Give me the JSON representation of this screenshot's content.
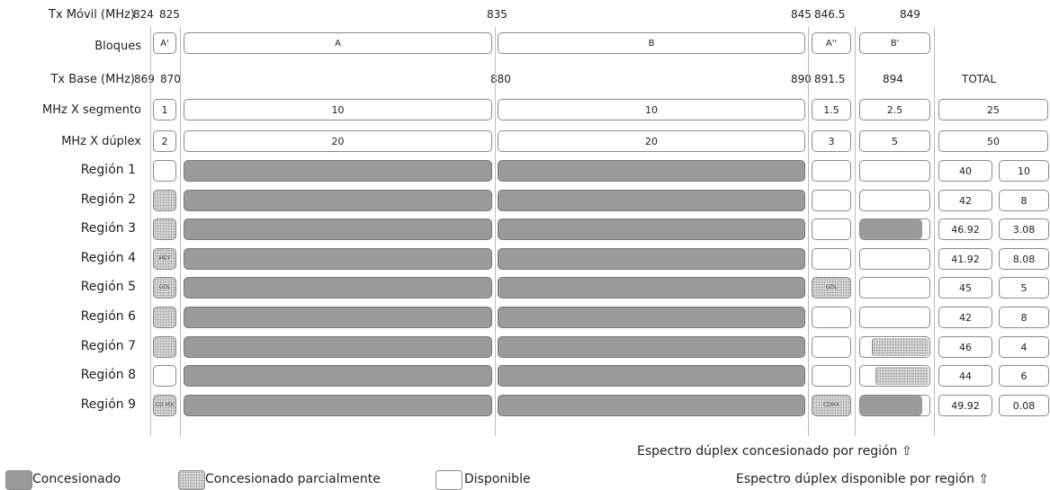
{
  "header": {
    "tx_movil_label": "Tx Móvil (MHz)",
    "tx_movil_ticks": [
      "824",
      "825",
      "835",
      "845",
      "846.5",
      "849"
    ],
    "bloques_label": "Bloques",
    "blocks": [
      "A'",
      "A",
      "B",
      "A''",
      "B'"
    ],
    "tx_base_label": "Tx Base (MHz)",
    "tx_base_ticks": [
      "869",
      "870",
      "880",
      "890",
      "891.5",
      "894"
    ],
    "total_label": "TOTAL"
  },
  "segment_row": {
    "label": "MHz X segmento",
    "values": [
      "1",
      "10",
      "10",
      "1.5",
      "2.5"
    ],
    "total": "25"
  },
  "duplex_row": {
    "label": "MHz X dúplex",
    "values": [
      "2",
      "20",
      "20",
      "3",
      "5"
    ],
    "total": "50"
  },
  "regions": [
    {
      "name": "Región 1",
      "a1": "available",
      "a1_text": "",
      "a2": "available",
      "a2_text": "",
      "b1": "available",
      "b1_fill": 0,
      "conc": "40",
      "disp": "10"
    },
    {
      "name": "Región 2",
      "a1": "partial",
      "a1_text": "",
      "a2": "available",
      "a2_text": "",
      "b1": "available",
      "b1_fill": 0,
      "conc": "42",
      "disp": "8"
    },
    {
      "name": "Región 3",
      "a1": "partial",
      "a1_text": "",
      "a2": "available",
      "a2_text": "",
      "b1": "full",
      "b1_fill": 0.9,
      "conc": "46.92",
      "disp": "3.08"
    },
    {
      "name": "Región 4",
      "a1": "partial",
      "a1_text": "MEY",
      "a2": "available",
      "a2_text": "",
      "b1": "available",
      "b1_fill": 0,
      "conc": "41.92",
      "disp": "8.08"
    },
    {
      "name": "Región 5",
      "a1": "partial",
      "a1_text": "GDL",
      "a2": "partial",
      "a2_text": "GDL",
      "b1": "available",
      "b1_fill": 0,
      "conc": "45",
      "disp": "5"
    },
    {
      "name": "Región 6",
      "a1": "partial",
      "a1_text": "",
      "a2": "available",
      "a2_text": "",
      "b1": "available",
      "b1_fill": 0,
      "conc": "42",
      "disp": "8"
    },
    {
      "name": "Región 7",
      "a1": "partial",
      "a1_text": "",
      "a2": "available",
      "a2_text": "",
      "b1": "partial_right",
      "b1_fill": 0.8,
      "conc": "46",
      "disp": "4"
    },
    {
      "name": "Región 8",
      "a1": "available",
      "a1_text": "",
      "a2": "available",
      "a2_text": "",
      "b1": "partial_right",
      "b1_fill": 0.75,
      "conc": "44",
      "disp": "6"
    },
    {
      "name": "Región 9",
      "a1": "partial",
      "a1_text": "CD MX",
      "a2": "partial",
      "a2_text": "CDMX",
      "b1": "full",
      "b1_fill": 0.9,
      "conc": "49.92",
      "disp": "0.08"
    }
  ],
  "footer": {
    "concesionado_note": "Espectro dúplex concesionado por región ⇧",
    "disponible_note": "Espectro dúplex disponible por región ⇧"
  },
  "legend": [
    {
      "key": "full",
      "label": "Concesionado"
    },
    {
      "key": "partial",
      "label": "Concesionado parcialmente"
    },
    {
      "key": "available",
      "label": "Disponible"
    }
  ],
  "colors": {
    "concesionado": "#9a9a9a",
    "parcial": "#d6d6d6",
    "disponible": "#ffffff",
    "border": "#8a8a8a"
  }
}
